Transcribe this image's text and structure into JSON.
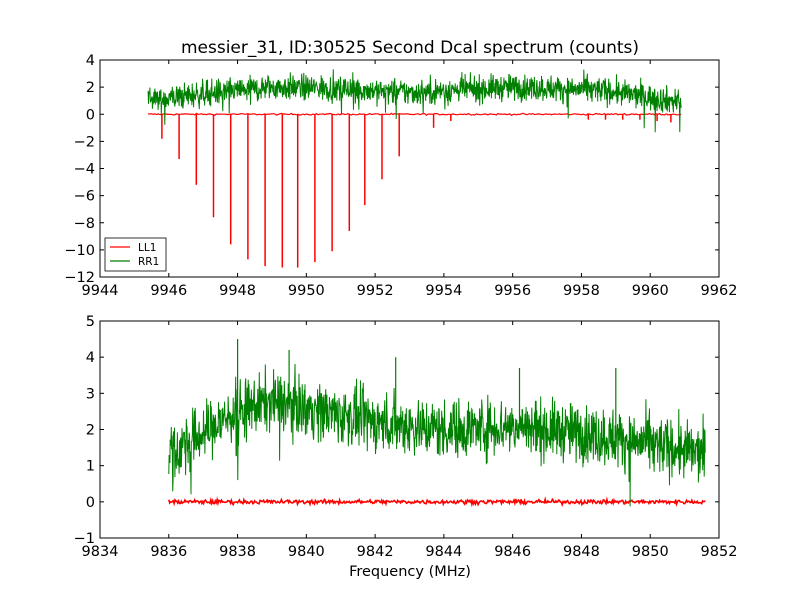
{
  "chart_data": [
    {
      "type": "line",
      "title": "messier_31, ID:30525 Second Dcal spectrum (counts)",
      "xlabel": "",
      "ylabel": "",
      "xlim": [
        9944,
        9962
      ],
      "ylim": [
        -12,
        4
      ],
      "xticks": [
        "9944",
        "9946",
        "9948",
        "9950",
        "9952",
        "9954",
        "9956",
        "9958",
        "9960",
        "9962"
      ],
      "yticks": [
        "4",
        "2",
        "0",
        "−2",
        "−4",
        "−6",
        "−8",
        "−10",
        "−12"
      ],
      "legend": {
        "placement": "lower-left"
      },
      "series": [
        {
          "name": "LL1",
          "color": "#ff0000",
          "kind": "spike-train",
          "baseline": 0,
          "x_range": [
            9945.4,
            9960.9
          ],
          "spikes": [
            {
              "x": 9945.8,
              "y": -1.8
            },
            {
              "x": 9946.3,
              "y": -3.3
            },
            {
              "x": 9946.8,
              "y": -5.2
            },
            {
              "x": 9947.3,
              "y": -7.6
            },
            {
              "x": 9947.8,
              "y": -9.6
            },
            {
              "x": 9948.3,
              "y": -10.7
            },
            {
              "x": 9948.8,
              "y": -11.2
            },
            {
              "x": 9949.3,
              "y": -11.3
            },
            {
              "x": 9949.75,
              "y": -11.3
            },
            {
              "x": 9950.25,
              "y": -10.9
            },
            {
              "x": 9950.75,
              "y": -10.1
            },
            {
              "x": 9951.25,
              "y": -8.6
            },
            {
              "x": 9951.7,
              "y": -6.7
            },
            {
              "x": 9952.2,
              "y": -4.8
            },
            {
              "x": 9952.7,
              "y": -3.1
            },
            {
              "x": 9953.7,
              "y": -1.0
            },
            {
              "x": 9954.2,
              "y": -0.5
            },
            {
              "x": 9958.2,
              "y": -0.4
            },
            {
              "x": 9958.7,
              "y": -0.4
            },
            {
              "x": 9959.2,
              "y": -0.4
            },
            {
              "x": 9959.7,
              "y": -0.4
            },
            {
              "x": 9960.2,
              "y": -0.5
            },
            {
              "x": 9960.6,
              "y": -0.6
            }
          ]
        },
        {
          "name": "RR1",
          "color": "#008000",
          "kind": "noisy",
          "x_range": [
            9945.4,
            9960.9
          ],
          "envelope": [
            {
              "x": 9945.4,
              "y": 1.0
            },
            {
              "x": 9947.0,
              "y": 1.5
            },
            {
              "x": 9949.0,
              "y": 2.0
            },
            {
              "x": 9951.0,
              "y": 1.9
            },
            {
              "x": 9953.0,
              "y": 1.6
            },
            {
              "x": 9956.0,
              "y": 2.0
            },
            {
              "x": 9958.5,
              "y": 1.8
            },
            {
              "x": 9960.9,
              "y": 0.9
            }
          ],
          "noise_amplitude": 0.9
        }
      ]
    },
    {
      "type": "line",
      "title": "",
      "xlabel": "Frequency (MHz)",
      "ylabel": "",
      "xlim": [
        9834,
        9852
      ],
      "ylim": [
        -1,
        5
      ],
      "xticks": [
        "9834",
        "9836",
        "9838",
        "9840",
        "9842",
        "9844",
        "9846",
        "9848",
        "9850",
        "9852"
      ],
      "yticks": [
        "5",
        "4",
        "3",
        "2",
        "1",
        "0",
        "−1"
      ],
      "series": [
        {
          "name": "LL1",
          "color": "#ff0000",
          "kind": "flat-noisy",
          "x_range": [
            9836.0,
            9851.6
          ],
          "baseline": 0,
          "noise_amplitude": 0.03
        },
        {
          "name": "RR1",
          "color": "#008000",
          "kind": "noisy",
          "x_range": [
            9836.0,
            9851.6
          ],
          "envelope": [
            {
              "x": 9836.0,
              "y": 1.3
            },
            {
              "x": 9837.0,
              "y": 1.9
            },
            {
              "x": 9838.0,
              "y": 2.5
            },
            {
              "x": 9839.0,
              "y": 2.8
            },
            {
              "x": 9840.0,
              "y": 2.6
            },
            {
              "x": 9841.0,
              "y": 2.4
            },
            {
              "x": 9842.0,
              "y": 2.2
            },
            {
              "x": 9844.0,
              "y": 2.0
            },
            {
              "x": 9846.0,
              "y": 2.1
            },
            {
              "x": 9848.0,
              "y": 1.9
            },
            {
              "x": 9850.0,
              "y": 1.6
            },
            {
              "x": 9851.6,
              "y": 1.3
            }
          ],
          "noise_amplitude": 0.75,
          "peaks": [
            {
              "x": 9838.0,
              "y": 4.5
            },
            {
              "x": 9839.5,
              "y": 4.2
            },
            {
              "x": 9842.6,
              "y": 4.0
            },
            {
              "x": 9846.2,
              "y": 3.7
            },
            {
              "x": 9849.0,
              "y": 3.7
            }
          ]
        }
      ]
    }
  ]
}
